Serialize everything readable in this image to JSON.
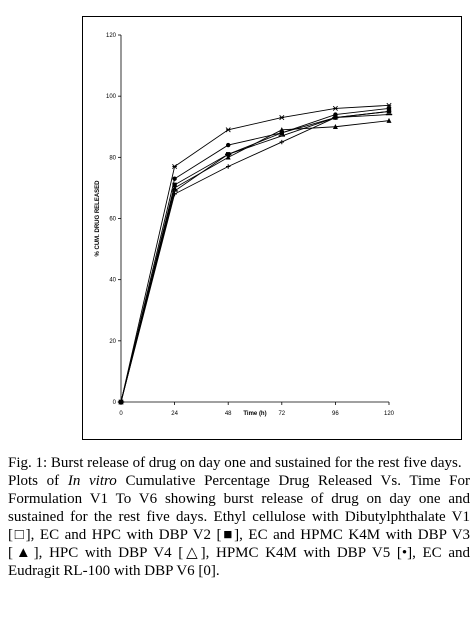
{
  "chart_data": {
    "type": "line",
    "x": [
      0,
      24,
      48,
      72,
      96,
      120
    ],
    "x_tick_labels": [
      "0",
      "24",
      "48",
      "72",
      "96",
      "120"
    ],
    "y_tick_labels": [
      "0",
      "20",
      "40",
      "60",
      "80",
      "100",
      "120"
    ],
    "xlabel": "Time (h)",
    "ylabel": "% CUM. DRUG RELEASED",
    "xlim": [
      0,
      120
    ],
    "ylim": [
      0,
      120
    ],
    "grid": false,
    "series": [
      {
        "marker": "star",
        "values": [
          0,
          77,
          89,
          93,
          96,
          97
        ]
      },
      {
        "marker": "circle",
        "values": [
          0,
          73,
          84,
          88,
          94,
          96
        ]
      },
      {
        "marker": "square",
        "values": [
          0,
          71,
          81,
          88,
          93,
          95
        ]
      },
      {
        "marker": "triangle",
        "values": [
          0,
          70,
          80,
          89,
          90,
          92
        ]
      },
      {
        "marker": "dash",
        "values": [
          0,
          69,
          81,
          87,
          93,
          94
        ]
      },
      {
        "marker": "plus",
        "values": [
          0,
          68,
          77,
          85,
          93,
          95
        ]
      }
    ],
    "line_color": "#000000"
  },
  "caption": {
    "title": "Fig. 1: Burst release of drug  on day one and sustained  for the rest five days.",
    "plots_prefix": "Plots of ",
    "in_vitro": "In vitro",
    "plots_body": " Cumulative Percentage Drug Released Vs. Time For Formulation  V1 To V6 showing burst release of drug  on day one and sustained  for the rest five days.  Ethyl cellulose with Dibutylphthalate V1 [□], EC and HPC with DBP V2 [■], EC and  HPMC K4M with DBP V3 [▲], HPC with DBP V4 [△], HPMC K4M with DBP V5 [•], EC and Eudragit RL-100 with DBP V6 [0]."
  }
}
